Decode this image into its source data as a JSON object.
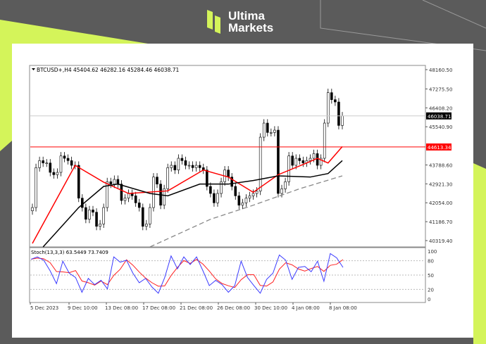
{
  "brand": {
    "line1": "Ultima",
    "line2": "Markets",
    "accent": "#d4f45a"
  },
  "chart_data": {
    "type": "candlestick",
    "symbol_header": "BTCUSD+,H4  45404.62 46282.16 45284.46 46038.71",
    "ylim": [
      40000,
      48400
    ],
    "y_ticks": [
      48160.5,
      47275.5,
      46408.2,
      45540.9,
      43788.6,
      42921.3,
      42054.0,
      41186.7,
      40319.4
    ],
    "current_price": {
      "label": "46038.71",
      "value": 46038.71,
      "color": "#000000"
    },
    "horizontal_line": {
      "label": "44613.34",
      "value": 44613.34,
      "color": "#ff0000"
    },
    "x_ticks": [
      "5 Dec 2023",
      "9 Dec 10:00",
      "13 Dec 08:00",
      "17 Dec 08:00",
      "21 Dec 08:00",
      "26 Dec 08:00",
      "30 Dec 10:00",
      "4 Jan 08:00",
      "8 Jan 08:00"
    ],
    "close": [
      41835,
      43664,
      43987,
      43879,
      43879,
      43449,
      43341,
      43449,
      44202,
      44094,
      43987,
      43772,
      43772,
      42266,
      41835,
      41298,
      41728,
      41620,
      40975,
      41082,
      41835,
      43019,
      42911,
      43126,
      42911,
      42158,
      42266,
      42481,
      42373,
      42051,
      41835,
      40975,
      41082,
      41835,
      43234,
      42911,
      41943,
      42696,
      43664,
      43772,
      43557,
      44094,
      43987,
      43772,
      43772,
      43664,
      43772,
      43664,
      43557,
      42804,
      42481,
      42051,
      42481,
      43019,
      43557,
      43234,
      42804,
      42373,
      41943,
      42051,
      42266,
      42373,
      42481,
      42588,
      45062,
      45708,
      45278,
      45278,
      45385,
      42481,
      42696,
      43019,
      44202,
      43772,
      44094,
      43987,
      43879,
      43987,
      44094,
      44309,
      43772,
      44094,
      45708,
      47106,
      46783,
      46676,
      45600,
      46038.71
    ],
    "ma_fast": {
      "color": "#ff0000",
      "points": [
        [
          0,
          40190
        ],
        [
          12,
          43772
        ],
        [
          20,
          43000
        ],
        [
          27,
          42481
        ],
        [
          38,
          42600
        ],
        [
          48,
          43557
        ],
        [
          55,
          43234
        ],
        [
          62,
          42534
        ],
        [
          69,
          43341
        ],
        [
          77,
          43880
        ],
        [
          80,
          44094
        ],
        [
          83,
          43880
        ],
        [
          87,
          44632
        ]
      ]
    },
    "ma_slow": {
      "color": "#000000",
      "points": [
        [
          3,
          40007
        ],
        [
          13,
          41835
        ],
        [
          20,
          42804
        ],
        [
          24,
          42911
        ],
        [
          33,
          42481
        ],
        [
          38,
          42373
        ],
        [
          47,
          42911
        ],
        [
          55,
          42911
        ],
        [
          62,
          43073
        ],
        [
          69,
          43288
        ],
        [
          78,
          43234
        ],
        [
          83,
          43395
        ],
        [
          87,
          43987
        ]
      ]
    },
    "ma_long": {
      "color": "#888888",
      "style": "dashed",
      "points": [
        [
          33,
          40007
        ],
        [
          50,
          41298
        ],
        [
          62,
          41943
        ],
        [
          75,
          42696
        ],
        [
          87,
          43288
        ]
      ]
    },
    "stoch": {
      "label": "Stoch(13,3,3) 63.5449 73.7409",
      "levels": [
        80,
        50,
        20
      ],
      "y_ticks": [
        100,
        80,
        50,
        20,
        0
      ],
      "k_color": "#3b3bff",
      "d_color": "#ff2020",
      "k": [
        83,
        88,
        81,
        59,
        32,
        79,
        54,
        45,
        14,
        43,
        30,
        39,
        21,
        88,
        77,
        81,
        54,
        34,
        43,
        25,
        12,
        45,
        90,
        63,
        88,
        72,
        88,
        59,
        28,
        39,
        30,
        14,
        28,
        79,
        45,
        28,
        12,
        41,
        54,
        92,
        81,
        41,
        66,
        68,
        57,
        79,
        37,
        95,
        86,
        66
      ]
    }
  }
}
